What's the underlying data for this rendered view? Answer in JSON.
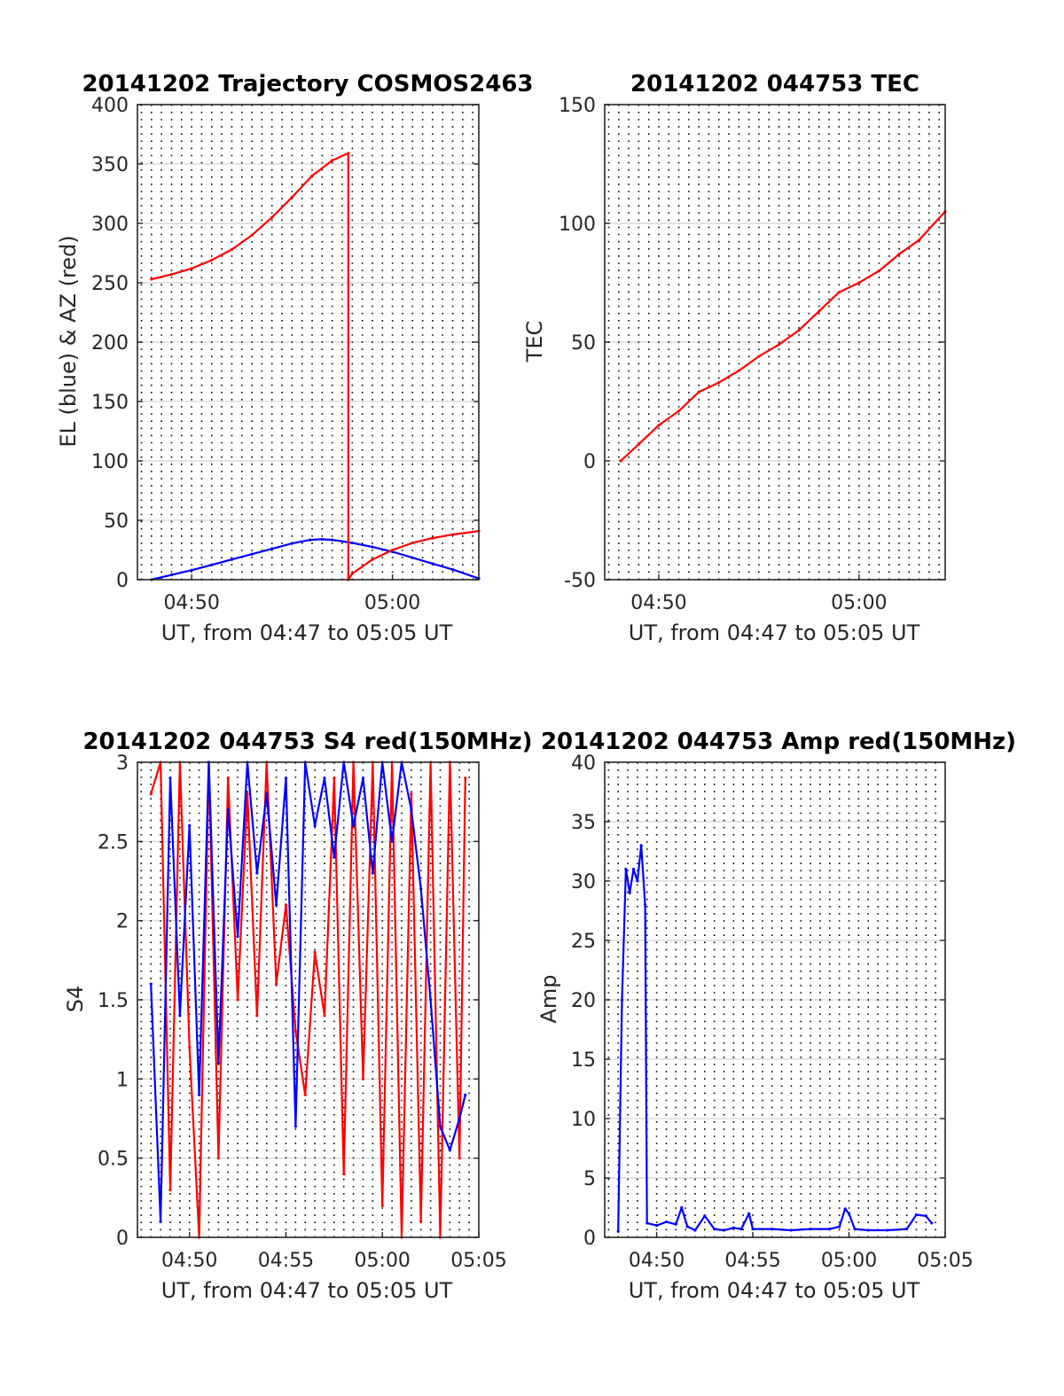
{
  "colors": {
    "el": "#0000ff",
    "az": "#ff0000",
    "tec": "#ff0000",
    "s4_red": "#ff0000",
    "s4_blue": "#0000ff",
    "amp": "#0000ff",
    "grid_h": "#dcdcdc",
    "grid_v": "#000000",
    "axis": "#262626"
  },
  "chart_data": [
    {
      "id": "trajectory",
      "type": "line",
      "title": "20141202 Trajectory COSMOS2463",
      "xlabel": "UT, from 04:47 to 05:05 UT",
      "ylabel": "EL (blue) & AZ (red)",
      "xlim": [
        287.3,
        304.3
      ],
      "ylim": [
        0,
        400
      ],
      "yticks": [
        0,
        50,
        100,
        150,
        200,
        250,
        300,
        350,
        400
      ],
      "yticklabels": [
        "0",
        "50",
        "100",
        "150",
        "200",
        "250",
        "300",
        "350",
        "400"
      ],
      "xticks": [
        290,
        300
      ],
      "xticklabels": [
        "04:50",
        "05:00"
      ],
      "grid": "vertical dotted every 0.5 min, horizontal light",
      "series": [
        {
          "name": "EL",
          "color": "blue",
          "x": [
            288.0,
            289.0,
            290.0,
            291.0,
            292.0,
            293.0,
            294.0,
            295.0,
            295.9,
            296.5,
            297.0,
            298.0,
            299.0,
            300.0,
            301.0,
            302.0,
            303.0,
            304.3
          ],
          "y": [
            0,
            4,
            8,
            12.5,
            17,
            21.5,
            26,
            30.5,
            33.5,
            34,
            33.5,
            31,
            27.5,
            23.5,
            18.5,
            13.5,
            8.5,
            1
          ]
        },
        {
          "name": "AZ",
          "color": "red",
          "x": [
            288.0,
            289.0,
            290.0,
            291.0,
            292.0,
            293.0,
            294.0,
            295.0,
            296.0,
            297.0,
            297.8,
            297.8,
            298.0,
            299.0,
            300.0,
            301.0,
            302.0,
            303.0,
            304.3
          ],
          "y": [
            253,
            257,
            262,
            269,
            278,
            290,
            305,
            322,
            340,
            353,
            359,
            0,
            5,
            17,
            25,
            31,
            35,
            38,
            41
          ]
        }
      ]
    },
    {
      "id": "tec",
      "type": "line",
      "title": "20141202 044753 TEC",
      "xlabel": "UT, from 04:47 to 05:05 UT",
      "ylabel": "TEC",
      "xlim": [
        287.3,
        304.3
      ],
      "ylim": [
        -50,
        150
      ],
      "yticks": [
        -50,
        0,
        50,
        100,
        150
      ],
      "yticklabels": [
        "-50",
        "0",
        "50",
        "100",
        "150"
      ],
      "xticks": [
        290,
        300
      ],
      "xticklabels": [
        "04:50",
        "05:00"
      ],
      "grid": "vertical dotted every 0.5 min, horizontal light",
      "series": [
        {
          "name": "TEC",
          "color": "red",
          "x": [
            288.1,
            289.0,
            290.0,
            291.0,
            292.0,
            293.0,
            294.0,
            295.0,
            296.0,
            297.0,
            298.0,
            299.0,
            300.0,
            301.0,
            302.0,
            303.0,
            304.3
          ],
          "y": [
            0,
            7,
            15,
            21,
            29,
            33,
            38,
            44,
            49,
            55,
            63,
            71,
            75,
            80,
            87,
            93,
            105
          ]
        }
      ]
    },
    {
      "id": "s4",
      "type": "line",
      "title": "20141202 044753 S4 red(150MHz)",
      "xlabel": "UT, from 04:47 to 05:05 UT",
      "ylabel": "S4",
      "xlim": [
        287.3,
        305.0
      ],
      "ylim": [
        0,
        3
      ],
      "yticks": [
        0,
        0.5,
        1,
        1.5,
        2,
        2.5,
        3
      ],
      "yticklabels": [
        "0",
        "0.5",
        "1",
        "1.5",
        "2",
        "2.5",
        "3"
      ],
      "xticks": [
        290,
        295,
        300,
        305
      ],
      "xticklabels": [
        "04:50",
        "04:55",
        "05:00",
        "05:05"
      ],
      "grid": "vertical dotted every 0.5 min, horizontal light",
      "series": [
        {
          "name": "S4 red",
          "color": "red",
          "x": [
            288.0,
            288.5,
            289.0,
            289.5,
            290.0,
            290.5,
            291.0,
            291.5,
            292.0,
            292.5,
            293.0,
            293.5,
            294.0,
            294.5,
            295.0,
            295.5,
            296.0,
            296.5,
            297.0,
            297.5,
            298.0,
            298.5,
            299.0,
            299.5,
            300.0,
            300.5,
            301.0,
            301.5,
            302.0,
            302.5,
            303.0,
            303.5,
            304.0,
            304.3
          ],
          "y": [
            2.8,
            3.0,
            0.3,
            3.0,
            1.2,
            0.0,
            3.0,
            0.5,
            2.9,
            1.5,
            2.8,
            1.4,
            3.0,
            1.6,
            2.1,
            1.3,
            0.9,
            1.8,
            1.4,
            2.9,
            0.4,
            3.0,
            1.0,
            3.0,
            0.2,
            3.0,
            0.0,
            2.8,
            0.1,
            3.0,
            0.0,
            3.0,
            0.5,
            2.9
          ]
        },
        {
          "name": "S4 blue",
          "color": "blue",
          "x": [
            288.0,
            288.5,
            289.0,
            289.5,
            290.0,
            290.5,
            291.0,
            291.5,
            292.0,
            292.5,
            293.0,
            293.5,
            294.0,
            294.5,
            295.0,
            295.5,
            296.0,
            296.5,
            297.0,
            297.5,
            298.0,
            298.5,
            299.0,
            299.5,
            300.0,
            300.5,
            301.0,
            301.5,
            302.0,
            302.5,
            303.0,
            303.5,
            304.0,
            304.3
          ],
          "y": [
            1.6,
            0.1,
            2.9,
            1.4,
            2.6,
            0.9,
            3.0,
            1.1,
            2.7,
            1.9,
            3.0,
            2.3,
            2.8,
            2.1,
            2.9,
            0.7,
            3.0,
            2.6,
            2.9,
            2.4,
            3.0,
            2.6,
            2.9,
            2.3,
            3.0,
            2.5,
            3.0,
            2.7,
            2.2,
            1.5,
            0.7,
            0.55,
            0.75,
            0.9
          ]
        }
      ]
    },
    {
      "id": "amp",
      "type": "line",
      "title": "20141202 044753 Amp red(150MHz)",
      "xlabel": "UT, from 04:47 to 05:05 UT",
      "ylabel": "Amp",
      "xlim": [
        287.3,
        305.0
      ],
      "ylim": [
        0,
        40
      ],
      "yticks": [
        0,
        5,
        10,
        15,
        20,
        25,
        30,
        35,
        40
      ],
      "yticklabels": [
        "0",
        "5",
        "10",
        "15",
        "20",
        "25",
        "30",
        "35",
        "40"
      ],
      "xticks": [
        290,
        295,
        300,
        305
      ],
      "xticklabels": [
        "04:50",
        "04:55",
        "05:00",
        "05:05"
      ],
      "grid": "vertical dotted every 0.5 min, horizontal light",
      "series": [
        {
          "name": "Amp",
          "color": "blue",
          "x": [
            288.0,
            288.2,
            288.4,
            288.6,
            288.8,
            289.0,
            289.2,
            289.4,
            289.5,
            290.0,
            290.5,
            291.0,
            291.3,
            291.6,
            292.0,
            292.5,
            293.0,
            293.5,
            294.0,
            294.4,
            294.8,
            295.0,
            296.0,
            297.0,
            298.0,
            299.0,
            299.5,
            299.8,
            300.0,
            300.3,
            301.0,
            302.0,
            303.0,
            303.5,
            304.0,
            304.3
          ],
          "y": [
            0.5,
            20,
            31,
            29,
            31,
            30,
            33,
            28,
            1.2,
            1.0,
            1.3,
            1.1,
            2.5,
            0.9,
            0.6,
            1.8,
            0.7,
            0.6,
            0.8,
            0.7,
            2.0,
            0.7,
            0.7,
            0.6,
            0.7,
            0.7,
            0.9,
            2.4,
            2.0,
            0.7,
            0.6,
            0.6,
            0.7,
            1.9,
            1.8,
            1.2
          ]
        }
      ]
    }
  ]
}
